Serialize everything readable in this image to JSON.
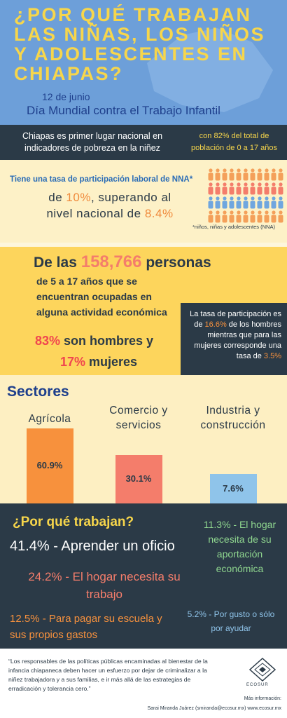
{
  "header": {
    "title_lines": [
      "¿POR QUÉ TRABAJAN",
      "LAS NIÑAS, LOS NIÑOS",
      "Y ADOLESCENTES EN",
      "CHIAPAS?"
    ],
    "date": "12 de junio",
    "subtitle": "Día Mundial contra el Trabajo Infantil"
  },
  "poverty": {
    "left": "Chiapas es primer lugar nacional en indicadores de pobreza en la niñez",
    "right": "con 82% del total de población de 0 a 17 años"
  },
  "participation": {
    "heading": "Tiene una tasa de participación laboral de NNA*",
    "pre": "de ",
    "rate": "10%",
    "mid": ", superando al nivel nacional de ",
    "national": "8.4%",
    "note": "*niños, niñas y adolescentes (NNA)"
  },
  "employed": {
    "pre": "De las ",
    "number": "158,766",
    "post": " personas",
    "desc": "de 5 a 17 años que se encuentran ocupadas en alguna actividad económica",
    "men_pct": "83%",
    "men_text": " son hombres y",
    "women_pct": "17%",
    "women_text": " mujeres",
    "box_pre": "La tasa de participación es de ",
    "box_men": "16.6%",
    "box_mid": " de los hombres mientras que para las mujeres corresponde una tasa de ",
    "box_women": "3.5%"
  },
  "chart_data": {
    "type": "bar",
    "title": "Sectores",
    "categories": [
      "Agrícola",
      "Comercio y servicios",
      "Industria y construcción"
    ],
    "values": [
      60.9,
      30.1,
      7.6
    ],
    "value_labels": [
      "60.9%",
      "30.1%",
      "7.6%"
    ],
    "colors": [
      "#f7913d",
      "#f47d6b",
      "#8fc4ea"
    ]
  },
  "reasons": {
    "title": "¿Por qué trabajan?",
    "items": [
      "41.4% - Aprender un oficio",
      "24.2% - El hogar necesita su trabajo",
      "12.5% - Para pagar su escuela y sus propios gastos",
      "11.3% - El hogar necesita de su aportación económica",
      "5.2% - Por gusto o sólo por ayudar"
    ]
  },
  "footer": {
    "quote": "“Los responsables de las políticas públicas encaminadas al bienestar de la infancia chiapaneca deben hacer un esfuerzo por dejar de criminalizar a la niñez trabajadora y a sus familias, e ir más allá de las estrategias de erradicación y tolerancia cero.”",
    "logo": "ECOSUR",
    "more": "Más información:",
    "contact": "Sarai Miranda Juárez (smiranda@ecosur.mx) www.ecosur.mx"
  }
}
